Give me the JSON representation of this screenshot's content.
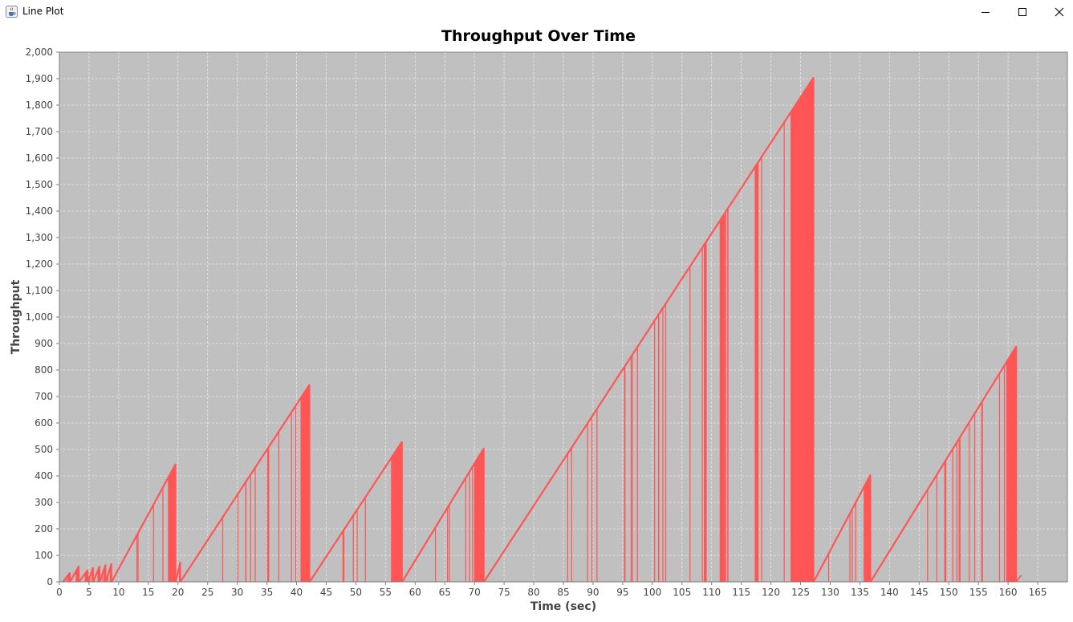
{
  "window": {
    "title": "Line Plot",
    "icons": {
      "app": "java-cup-icon",
      "minimize": "minimize-icon",
      "maximize": "maximize-icon",
      "close": "close-icon"
    }
  },
  "chart_data": {
    "type": "line",
    "title": "Throughput Over Time",
    "xlabel": "Time (sec)",
    "ylabel": "Throughput",
    "xlim": [
      0,
      170
    ],
    "ylim": [
      0,
      2000
    ],
    "xticks": [
      0,
      5,
      10,
      15,
      20,
      25,
      30,
      35,
      40,
      45,
      50,
      55,
      60,
      65,
      70,
      75,
      80,
      85,
      90,
      95,
      100,
      105,
      110,
      115,
      120,
      125,
      130,
      135,
      140,
      145,
      150,
      155,
      160,
      165
    ],
    "xtick_labels": [
      "0",
      "5",
      "10",
      "15",
      "20",
      "25",
      "30",
      "35",
      "40",
      "45",
      "50",
      "55",
      "60",
      "65",
      "70",
      "75",
      "80",
      "85",
      "90",
      "95",
      "100",
      "105",
      "110",
      "115",
      "120",
      "125",
      "130",
      "135",
      "140",
      "145",
      "150",
      "155",
      "160",
      "165"
    ],
    "yticks": [
      0,
      100,
      200,
      300,
      400,
      500,
      600,
      700,
      800,
      900,
      1000,
      1100,
      1200,
      1300,
      1400,
      1500,
      1600,
      1700,
      1800,
      1900,
      2000
    ],
    "ytick_labels": [
      "0",
      "100",
      "200",
      "300",
      "400",
      "500",
      "600",
      "700",
      "800",
      "900",
      "1,000",
      "1,100",
      "1,200",
      "1,300",
      "1,400",
      "1,500",
      "1,600",
      "1,700",
      "1,800",
      "1,900",
      "2,000"
    ],
    "grid": true,
    "plot_background": "#c0c0c0",
    "grid_color": "#e8e8e8",
    "series": [
      {
        "color": "#ff5555",
        "ramps": [
          {
            "x0": 0.6,
            "x1": 1.8,
            "peak": 35
          },
          {
            "x0": 1.8,
            "x1": 3.3,
            "peak": 60
          },
          {
            "x0": 3.3,
            "x1": 4.8,
            "peak": 45
          },
          {
            "x0": 4.8,
            "x1": 5.7,
            "peak": 55
          },
          {
            "x0": 5.7,
            "x1": 6.8,
            "peak": 60
          },
          {
            "x0": 6.8,
            "x1": 7.8,
            "peak": 65
          },
          {
            "x0": 7.8,
            "x1": 8.8,
            "peak": 70
          },
          {
            "x0": 8.8,
            "x1": 19.6,
            "peak": 445
          },
          {
            "x0": 19.6,
            "x1": 20.4,
            "peak": 75
          },
          {
            "x0": 20.4,
            "x1": 42.2,
            "peak": 745
          },
          {
            "x0": 42.2,
            "x1": 57.8,
            "peak": 530
          },
          {
            "x0": 57.8,
            "x1": 71.6,
            "peak": 505
          },
          {
            "x0": 71.6,
            "x1": 127.2,
            "peak": 1905
          },
          {
            "x0": 127.2,
            "x1": 136.8,
            "peak": 405
          },
          {
            "x0": 136.8,
            "x1": 161.4,
            "peak": 890
          }
        ],
        "tail": [
          {
            "x": 161.4,
            "y": 0
          },
          {
            "x": 162.2,
            "y": 25
          }
        ]
      }
    ]
  }
}
